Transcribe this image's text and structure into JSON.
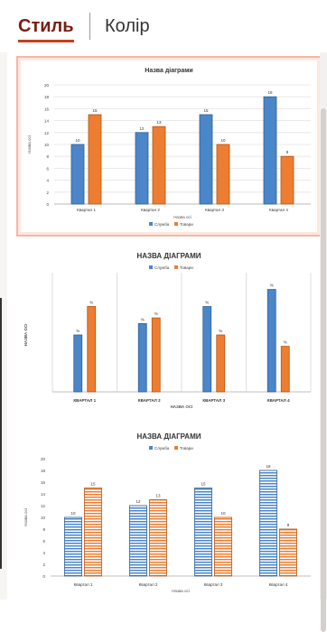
{
  "tabs": {
    "style": "Стиль",
    "color": "Колір"
  },
  "colors": {
    "accent": "#c2411c",
    "series1": "#4a86c8",
    "series2": "#ed7d31"
  },
  "chart_data": [
    {
      "type": "bar",
      "title": "Назва діаграми",
      "xlabel": "Назва осі",
      "ylabel": "Назва осі",
      "categories": [
        "Квартал 1",
        "Квартал 2",
        "Квартал 3",
        "Квартал 4"
      ],
      "series": [
        {
          "name": "Служба",
          "values": [
            10,
            12,
            15,
            18
          ]
        },
        {
          "name": "Товари",
          "values": [
            15,
            13,
            10,
            8
          ]
        }
      ],
      "ylim": [
        0,
        20
      ],
      "yticks": [
        "0",
        "2",
        "4",
        "6",
        "8",
        "10",
        "12",
        "14",
        "16",
        "18",
        "20"
      ],
      "data_labels": [
        [
          "10",
          "12",
          "15",
          "18"
        ],
        [
          "15",
          "13",
          "10",
          "8"
        ]
      ],
      "legend": "bottom",
      "grid": true
    },
    {
      "type": "bar",
      "title": "НАЗВА ДІАГРАМИ",
      "xlabel": "НАЗВА ОСІ",
      "ylabel": "НАЗВА ОСІ",
      "categories": [
        "КВАРТАЛ 1",
        "КВАРТАЛ 2",
        "КВАРТАЛ 3",
        "КВАРТАЛ 4"
      ],
      "series": [
        {
          "name": "Служба",
          "values": [
            10,
            12,
            15,
            18
          ]
        },
        {
          "name": "Товари",
          "values": [
            15,
            13,
            10,
            8
          ]
        }
      ],
      "ylim": [
        0,
        20
      ],
      "data_labels": [
        [
          "%",
          "%",
          "%",
          "%"
        ],
        [
          "%",
          "%",
          "%",
          "%"
        ]
      ],
      "legend": "top",
      "grid": false
    },
    {
      "type": "bar",
      "title": "НАЗВА ДІАГРАМИ",
      "xlabel": "Назва осі",
      "ylabel": "Назва осі",
      "categories": [
        "Квартал 1",
        "Квартал 2",
        "Квартал 3",
        "Квартал 4"
      ],
      "series": [
        {
          "name": "Служба",
          "values": [
            10,
            12,
            15,
            18
          ]
        },
        {
          "name": "Товари",
          "values": [
            15,
            13,
            10,
            8
          ]
        }
      ],
      "ylim": [
        0,
        20
      ],
      "yticks": [
        "0",
        "2",
        "4",
        "6",
        "8",
        "10",
        "12",
        "14",
        "16",
        "18",
        "20"
      ],
      "data_labels": [
        [
          "10",
          "12",
          "15",
          "18"
        ],
        [
          "15",
          "13",
          "10",
          "8"
        ]
      ],
      "legend": "top",
      "grid": false
    }
  ]
}
